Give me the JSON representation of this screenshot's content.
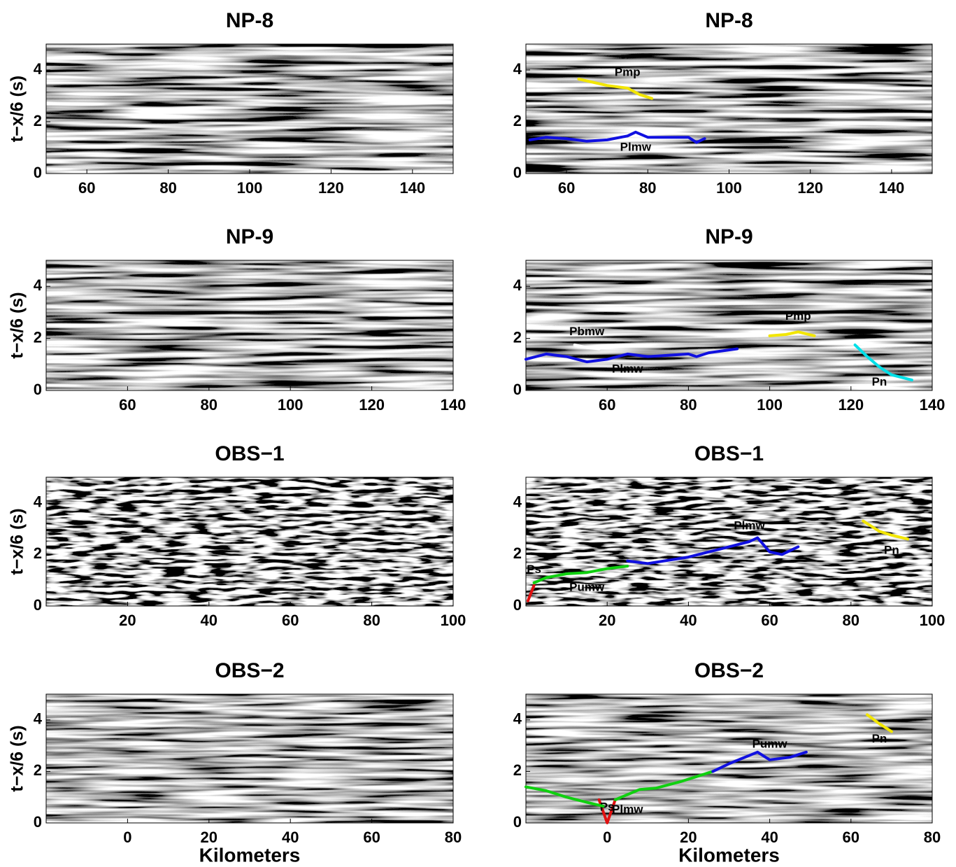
{
  "chart_data": [
    {
      "type": "image",
      "title": "NP-8",
      "ylabel": "t−x/6 (s)",
      "xlim": [
        50,
        150
      ],
      "xticks": [
        60,
        80,
        100,
        120,
        140
      ],
      "ylim": [
        0,
        5
      ],
      "yticks": [
        0,
        2,
        4
      ]
    },
    {
      "type": "line",
      "title": "NP-8",
      "xlim": [
        50,
        150
      ],
      "xticks": [
        60,
        80,
        100,
        120,
        140
      ],
      "ylim": [
        0,
        5
      ],
      "yticks": [
        0,
        2,
        4
      ],
      "series": [
        {
          "name": "Pmp",
          "color": "#f2e600",
          "x": [
            63,
            70,
            75,
            78,
            81
          ],
          "values": [
            3.65,
            3.4,
            3.3,
            3.05,
            2.9
          ]
        },
        {
          "name": "Plmw",
          "color": "#1010e0",
          "x": [
            51,
            55,
            60,
            65,
            70,
            75,
            77,
            80,
            85,
            90,
            92,
            94
          ],
          "values": [
            1.3,
            1.4,
            1.35,
            1.25,
            1.3,
            1.45,
            1.6,
            1.4,
            1.4,
            1.4,
            1.2,
            1.35
          ]
        }
      ]
    },
    {
      "type": "image",
      "title": "NP-9",
      "ylabel": "t−x/6 (s)",
      "xlim": [
        40,
        140
      ],
      "xticks": [
        60,
        80,
        100,
        120,
        140
      ],
      "ylim": [
        0,
        5
      ],
      "yticks": [
        0,
        2,
        4
      ]
    },
    {
      "type": "line",
      "title": "NP-9",
      "xlim": [
        40,
        140
      ],
      "xticks": [
        60,
        80,
        100,
        120,
        140
      ],
      "ylim": [
        0,
        5
      ],
      "yticks": [
        0,
        2,
        4
      ],
      "series": [
        {
          "name": "Pbmw",
          "color": "#ffffff",
          "x": [
            52,
            55,
            58
          ],
          "values": [
            1.75,
            1.65,
            1.6
          ]
        },
        {
          "name": "Plmw",
          "color": "#1010e0",
          "x": [
            40,
            45,
            50,
            55,
            60,
            65,
            70,
            80,
            82,
            85,
            92
          ],
          "values": [
            1.2,
            1.4,
            1.3,
            1.1,
            1.2,
            1.4,
            1.3,
            1.4,
            1.3,
            1.45,
            1.6
          ]
        },
        {
          "name": "Pmp",
          "color": "#f2e600",
          "x": [
            100,
            104,
            107,
            111
          ],
          "values": [
            2.1,
            2.15,
            2.25,
            2.1
          ]
        },
        {
          "name": "Pn",
          "color": "#00e0e8",
          "x": [
            121,
            124,
            127,
            130,
            135
          ],
          "values": [
            1.75,
            1.3,
            0.9,
            0.6,
            0.4
          ]
        }
      ]
    },
    {
      "type": "image",
      "title": "OBS−1",
      "ylabel": "t−x/6 (s)",
      "xlim": [
        0,
        100
      ],
      "xticks": [
        20,
        40,
        60,
        80,
        100
      ],
      "ylim": [
        0,
        5
      ],
      "yticks": [
        0,
        2,
        4
      ]
    },
    {
      "type": "line",
      "title": "OBS−1",
      "xlim": [
        0,
        100
      ],
      "xticks": [
        20,
        40,
        60,
        80,
        100
      ],
      "ylim": [
        0,
        5
      ],
      "yticks": [
        0,
        2,
        4
      ],
      "series": [
        {
          "name": "Ps",
          "color": "#e01010",
          "x": [
            0.5,
            2
          ],
          "values": [
            0.2,
            0.8
          ]
        },
        {
          "name": "Pumw",
          "color": "#10d010",
          "x": [
            2,
            5,
            10,
            15,
            20,
            25
          ],
          "values": [
            0.9,
            1.1,
            1.25,
            1.3,
            1.45,
            1.55
          ]
        },
        {
          "name": "Plmw",
          "color": "#1010e0",
          "x": [
            25,
            30,
            40,
            50,
            55,
            57,
            60,
            63,
            67
          ],
          "values": [
            1.75,
            1.65,
            1.9,
            2.3,
            2.5,
            2.65,
            2.1,
            2.0,
            2.3
          ]
        },
        {
          "name": "Pn",
          "color": "#f2e600",
          "x": [
            83,
            87,
            90,
            94
          ],
          "values": [
            3.3,
            2.9,
            2.75,
            2.6
          ]
        }
      ]
    },
    {
      "type": "image",
      "title": "OBS−2",
      "ylabel": "t−x/6 (s)",
      "xlabel": "Kilometers",
      "xlim": [
        -20,
        80
      ],
      "xticks": [
        0,
        20,
        40,
        60,
        80
      ],
      "ylim": [
        0,
        5
      ],
      "yticks": [
        0,
        2,
        4
      ]
    },
    {
      "type": "line",
      "title": "OBS−2",
      "xlabel": "Kilometers",
      "xlim": [
        -20,
        80
      ],
      "xticks": [
        0,
        20,
        40,
        60,
        80
      ],
      "ylim": [
        0,
        5
      ],
      "yticks": [
        0,
        2,
        4
      ],
      "series": [
        {
          "name": "Ps",
          "color": "#e01010",
          "x": [
            -2,
            0,
            2
          ],
          "values": [
            0.9,
            0,
            0.9
          ]
        },
        {
          "name": "Plmw",
          "color": "#10d010",
          "x": [
            -20,
            -15,
            -10,
            -5,
            -1,
            0,
            2,
            5,
            8,
            12,
            18,
            22,
            26
          ],
          "values": [
            1.4,
            1.25,
            1.0,
            0.8,
            0.65,
            null,
            0.9,
            1.1,
            1.3,
            1.35,
            1.6,
            1.8,
            2.0
          ]
        },
        {
          "name": "Pumw",
          "color": "#1010e0",
          "x": [
            26,
            30,
            37,
            40,
            45,
            49
          ],
          "values": [
            2.0,
            2.3,
            2.75,
            2.45,
            2.55,
            2.75
          ]
        },
        {
          "name": "Pn",
          "color": "#f2e600",
          "x": [
            64,
            67,
            70
          ],
          "values": [
            4.2,
            3.85,
            3.55
          ]
        }
      ]
    }
  ]
}
